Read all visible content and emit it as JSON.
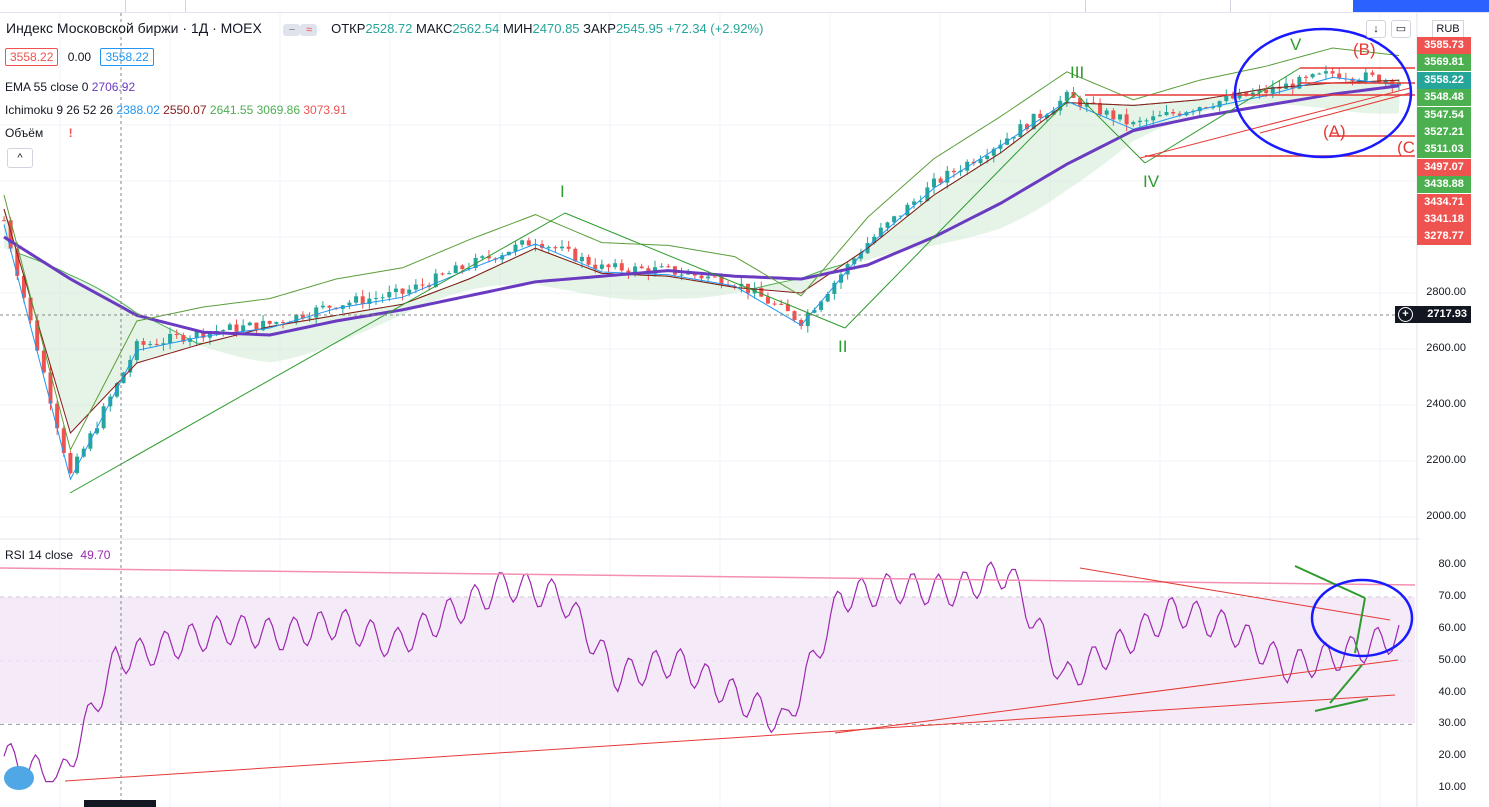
{
  "header": {
    "symbol": "Индекс Московской биржи · 1Д · MOEX",
    "ohlc": {
      "o_label": "ОТКР",
      "o": "2528.72",
      "h_label": "МАКС",
      "h": "2562.54",
      "l_label": "МИН",
      "l": "2470.85",
      "c_label": "ЗАКР",
      "c": "2545.95",
      "chg": "+72.34 (+2.92%)"
    },
    "bid": "3558.22",
    "spread": "0.00",
    "ask": "3558.22",
    "currency": "RUB"
  },
  "indicators": {
    "ema": {
      "label": "EMA 55 close 0",
      "value": "2706.92"
    },
    "ichimoku": {
      "label": "Ichimoku 9 26 52 26",
      "v1": "2388.02",
      "v2": "2550.07",
      "v3": "2641.55",
      "v4": "3069.86",
      "v5": "3073.91"
    },
    "volume": {
      "label": "Объём",
      "warn": "!"
    },
    "rsi": {
      "label": "RSI 14 close",
      "value": "49.70"
    }
  },
  "colors": {
    "up": "#26a69a",
    "down": "#ef5350",
    "rsi": "#9c27b0",
    "ema": "#6a3bc1",
    "annot": "#1a1aff",
    "wave": "#2e9b2e",
    "trend": "#e53935",
    "price": "#2196f3"
  },
  "price_axis": [
    "2000.00",
    "2200.00",
    "2400.00",
    "2600.00",
    "2800.00"
  ],
  "rsi_axis": [
    "10.00",
    "20.00",
    "30.00",
    "40.00",
    "50.00",
    "60.00",
    "70.00",
    "80.00"
  ],
  "crosshair_price": "2717.93",
  "price_tags": [
    {
      "v": "3585.73",
      "c": "#ef5350"
    },
    {
      "v": "3569.81",
      "c": "#4caf50"
    },
    {
      "v": "3558.22",
      "c": "#26a69a"
    },
    {
      "v": "3548.48",
      "c": "#4caf50"
    },
    {
      "v": "3547.54",
      "c": "#4caf50"
    },
    {
      "v": "3527.21",
      "c": "#4caf50"
    },
    {
      "v": "3511.03",
      "c": "#4caf50"
    },
    {
      "v": "3497.07",
      "c": "#ef5350"
    },
    {
      "v": "3438.88",
      "c": "#4caf50"
    },
    {
      "v": "3434.71",
      "c": "#ef5350"
    },
    {
      "v": "3341.18",
      "c": "#ef5350"
    },
    {
      "v": "3278.77",
      "c": "#ef5350"
    }
  ],
  "wave_labels": [
    {
      "t": "I",
      "c": "#2e9b2e"
    },
    {
      "t": "II",
      "c": "#2e9b2e"
    },
    {
      "t": "III",
      "c": "#2e9b2e"
    },
    {
      "t": "IV",
      "c": "#2e9b2e"
    },
    {
      "t": "V",
      "c": "#2e9b2e"
    },
    {
      "t": "(B)",
      "c": "#e53935"
    },
    {
      "t": "(A)",
      "c": "#e53935"
    },
    {
      "t": "(C",
      "c": "#e53935"
    }
  ],
  "chart_data": [
    {
      "type": "line",
      "title": "Индекс Московской биржи · 1Д · MOEX",
      "ylim": [
        1900,
        3650
      ],
      "grid": true,
      "series": [
        {
          "name": "EMA 55 close 0",
          "values": [
            3000,
            2850,
            2720,
            2660,
            2650,
            2700,
            2740,
            2790,
            2840,
            2860,
            2880,
            2860,
            2850,
            2900,
            3000,
            3120,
            3260,
            3380,
            3430,
            3470,
            3510,
            3540
          ]
        },
        {
          "name": "Ichimoku 9 26 52 26",
          "values": [
            3100,
            2300,
            2550,
            2620,
            2680,
            2720,
            2760,
            2850,
            2960,
            2870,
            2860,
            2820,
            2800,
            2960,
            3150,
            3300,
            3480,
            3470,
            3490,
            3530,
            3550,
            3560
          ]
        }
      ],
      "x": [
        0,
        10,
        20,
        30,
        40,
        50,
        60,
        70,
        80,
        90,
        100,
        110,
        120,
        130,
        140,
        150,
        160,
        170,
        180,
        190,
        200,
        210
      ],
      "price_close": [
        3060,
        2150,
        2610,
        2660,
        2690,
        2760,
        2800,
        2900,
        2990,
        2890,
        2880,
        2840,
        2700,
        2980,
        3190,
        3340,
        3500,
        3400,
        3470,
        3520,
        3585,
        3558
      ]
    },
    {
      "type": "line",
      "title": "RSI 14 close",
      "ylim": [
        10,
        85
      ],
      "series": [
        {
          "name": "RSI 14 close",
          "values": [
            20,
            12,
            50,
            55,
            60,
            58,
            62,
            55,
            65,
            74,
            70,
            45,
            50,
            40,
            30,
            70,
            73,
            72,
            78,
            44,
            55,
            66,
            60,
            48,
            52,
            58
          ]
        }
      ],
      "x": [
        0,
        8,
        16,
        24,
        32,
        40,
        48,
        56,
        64,
        72,
        80,
        88,
        96,
        104,
        112,
        120,
        128,
        136,
        144,
        152,
        160,
        168,
        176,
        184,
        192,
        200
      ],
      "levels": [
        30,
        70
      ]
    }
  ]
}
